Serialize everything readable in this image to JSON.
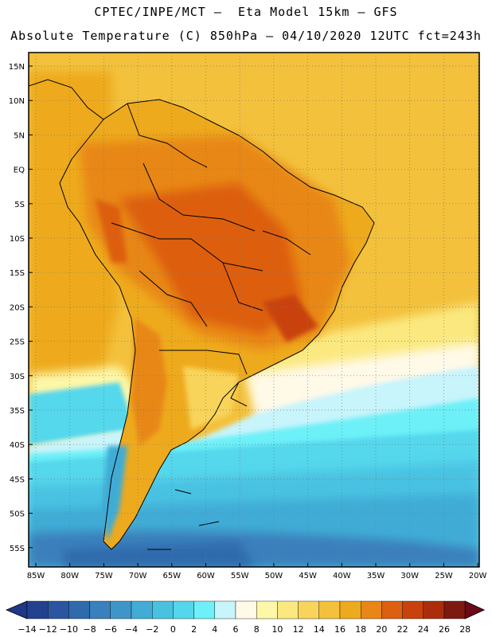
{
  "header": {
    "line1": "CPTEC/INPE/MCT –  Eta Model 15km – GFS",
    "line2": "Absolute Temperature (C) 850hPa – 04/10/2020 12UTC fct=243h"
  },
  "map": {
    "lat_labels": [
      "15N",
      "10N",
      "5N",
      "EQ",
      "5S",
      "10S",
      "15S",
      "20S",
      "25S",
      "30S",
      "35S",
      "40S",
      "45S",
      "50S",
      "55S"
    ],
    "lon_labels": [
      "85W",
      "80W",
      "75W",
      "70W",
      "65W",
      "60W",
      "55W",
      "50W",
      "45W",
      "40W",
      "35W",
      "30W",
      "25W",
      "20W"
    ],
    "grid": "dotted"
  },
  "colorbar": {
    "labels": [
      "-14",
      "-12",
      "-10",
      "-8",
      "-6",
      "-4",
      "-2",
      "0",
      "2",
      "4",
      "6",
      "8",
      "10",
      "12",
      "14",
      "16",
      "18",
      "20",
      "22",
      "24",
      "26",
      "28"
    ],
    "colors": [
      "#24418f",
      "#2b55a0",
      "#2f6aad",
      "#3a80bc",
      "#3e96c8",
      "#41acd6",
      "#49c2e2",
      "#54d7ec",
      "#6df0f8",
      "#c8f4fb",
      "#fff9e8",
      "#fdf7a8",
      "#fbe980",
      "#f8d45a",
      "#f3c13c",
      "#eeaa1d",
      "#e88717",
      "#dd5f10",
      "#c9420c",
      "#ab2d0c",
      "#7d1a10"
    ],
    "low_arrow_color": "#1f3887",
    "high_arrow_color": "#6b0a18"
  }
}
